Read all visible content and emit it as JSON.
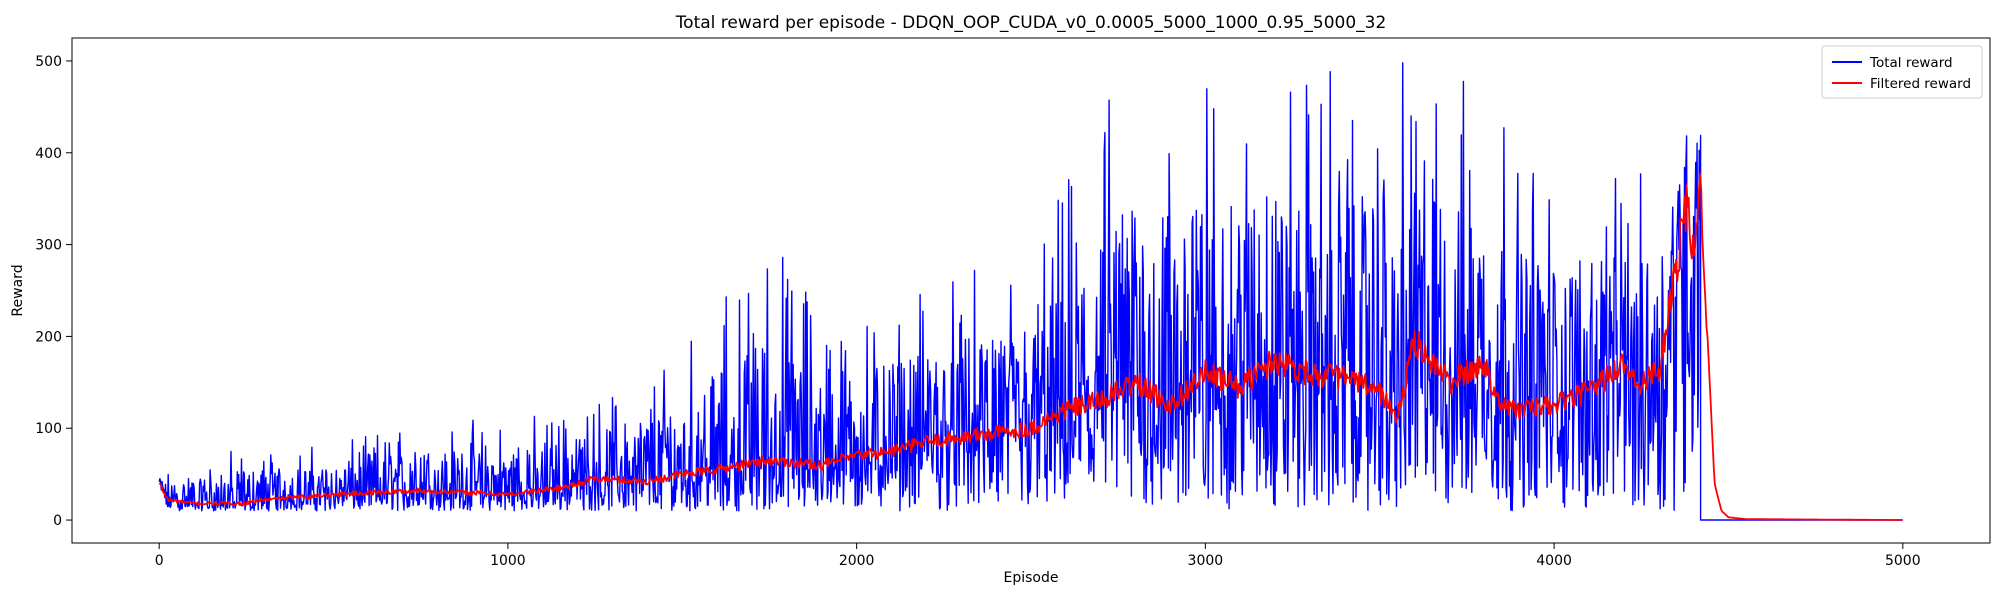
{
  "chart_data": {
    "type": "line",
    "title": "Total reward per episode - DDQN_OOP_CUDA_v0_0.0005_5000_1000_0.95_5000_32",
    "xlabel": "Episode",
    "ylabel": "Reward",
    "xlim": [
      -250,
      5250
    ],
    "ylim": [
      -25,
      525
    ],
    "xticks": [
      0,
      1000,
      2000,
      3000,
      4000,
      5000
    ],
    "yticks": [
      0,
      100,
      200,
      300,
      400,
      500
    ],
    "grid": false,
    "legend_position": "top-right",
    "colors": {
      "total": "#0000ff",
      "filtered": "#ff0000"
    },
    "series": [
      {
        "name": "Total reward",
        "color": "#0000ff",
        "envelope_x": [
          0,
          250,
          500,
          750,
          1000,
          1250,
          1500,
          1750,
          2000,
          2250,
          2500,
          2750,
          3000,
          3250,
          3500,
          3750,
          4000,
          4250,
          4420
        ],
        "envelope_high": [
          50,
          85,
          80,
          115,
          110,
          135,
          205,
          310,
          235,
          265,
          290,
          500,
          500,
          500,
          500,
          500,
          400,
          380,
          500
        ],
        "zero_after": 4420
      },
      {
        "name": "Filtered reward",
        "color": "#ff0000",
        "x": [
          0,
          25,
          100,
          250,
          300,
          500,
          750,
          1000,
          1150,
          1250,
          1400,
          1500,
          1600,
          1750,
          1900,
          2000,
          2100,
          2200,
          2300,
          2400,
          2500,
          2600,
          2700,
          2800,
          2900,
          3000,
          3100,
          3200,
          3300,
          3400,
          3500,
          3550,
          3600,
          3700,
          3800,
          3850,
          3900,
          4000,
          4100,
          4200,
          4250,
          4300,
          4350,
          4380,
          4400,
          4420,
          4440,
          4460,
          4480,
          4500,
          4550,
          5000
        ],
        "y": [
          40,
          22,
          18,
          18,
          22,
          28,
          32,
          28,
          35,
          45,
          42,
          50,
          55,
          65,
          60,
          70,
          75,
          85,
          90,
          95,
          100,
          120,
          130,
          150,
          125,
          160,
          145,
          175,
          160,
          155,
          140,
          110,
          195,
          150,
          170,
          125,
          120,
          125,
          140,
          170,
          150,
          160,
          270,
          350,
          280,
          370,
          200,
          40,
          10,
          3,
          1,
          0
        ]
      }
    ]
  }
}
